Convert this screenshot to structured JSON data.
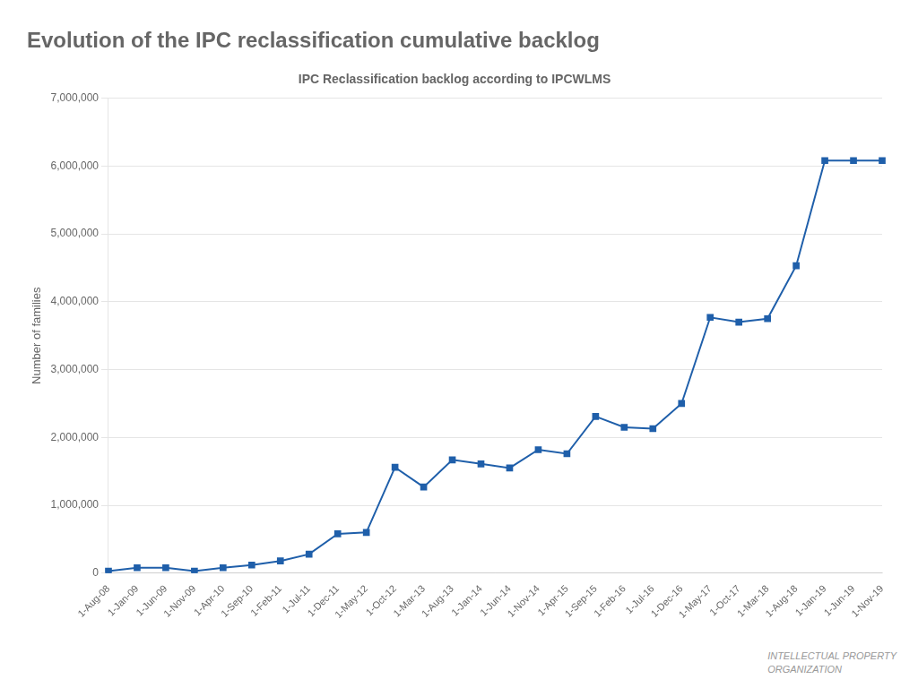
{
  "chart_data": {
    "type": "line",
    "title": "Evolution of the IPC reclassification cumulative backlog",
    "subtitle": "IPC Reclassification backlog according to IPCWLMS",
    "y_label": "Number of families",
    "categories": [
      "1-Aug-08",
      "1-Jan-09",
      "1-Jun-09",
      "1-Nov-09",
      "1-Apr-10",
      "1-Sep-10",
      "1-Feb-11",
      "1-Jul-11",
      "1-Dec-11",
      "1-May-12",
      "1-Oct-12",
      "1-Mar-13",
      "1-Aug-13",
      "1-Jan-14",
      "1-Jun-14",
      "1-Nov-14",
      "1-Apr-15",
      "1-Sep-15",
      "1-Feb-16",
      "1-Jul-16",
      "1-Dec-16",
      "1-May-17",
      "1-Oct-17",
      "1-Mar-18",
      "1-Aug-18",
      "1-Jan-19",
      "1-Jun-19",
      "1-Nov-19"
    ],
    "values": [
      30000,
      80000,
      80000,
      30000,
      80000,
      120000,
      180000,
      280000,
      580000,
      600000,
      1560000,
      1270000,
      1670000,
      1610000,
      1550000,
      1820000,
      1760000,
      2310000,
      2150000,
      2130000,
      2500000,
      3770000,
      3700000,
      3750000,
      4530000,
      6080000,
      6080000,
      6080000
    ],
    "color": "#1f5faa",
    "marker": "square",
    "ylim": [
      0,
      7000000
    ],
    "yticks": [
      0,
      {
        "value": 1000000,
        "label": "1,000,000"
      },
      {
        "value": 2000000,
        "label": "2,000,000"
      },
      {
        "value": 3000000,
        "label": "3,000,000"
      },
      {
        "value": 4000000,
        "label": "4,000,000"
      },
      {
        "value": 5000000,
        "label": "5,000,000"
      },
      {
        "value": 6000000,
        "label": "6,000,000"
      },
      {
        "value": 7000000,
        "label": "7,000,000"
      }
    ],
    "grid": true,
    "annotations": [
      "INTELLECTUAL PROPERTY",
      "ORGANIZATION"
    ]
  }
}
